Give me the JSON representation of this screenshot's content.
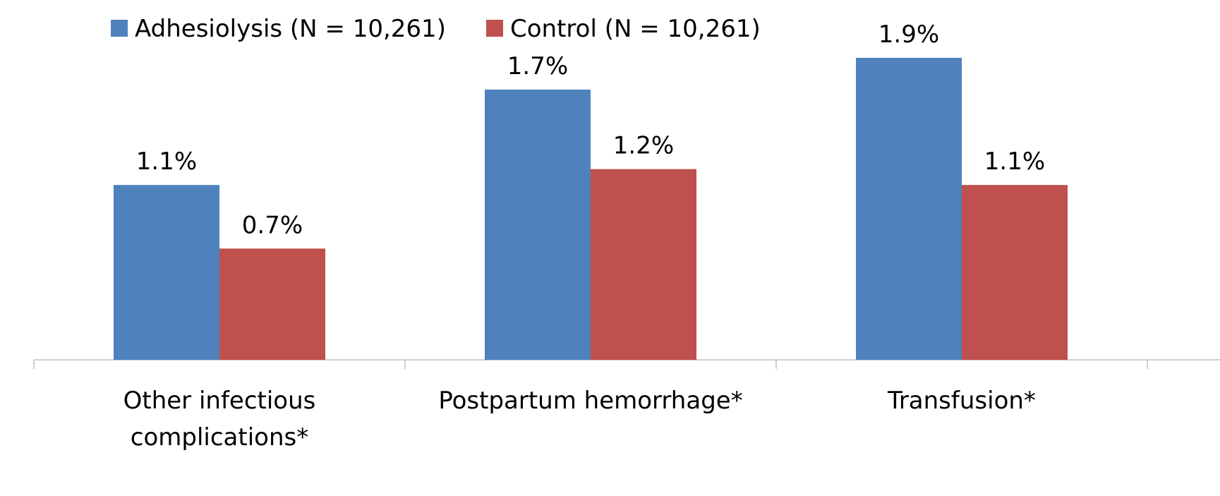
{
  "chart_data": {
    "type": "bar",
    "categories": [
      "Other infectious complications*",
      "Postpartum hemorrhage*",
      "Transfusion*"
    ],
    "series": [
      {
        "name": "Adhesiolysis (N = 10,261)",
        "color": "#4f81bd",
        "values": [
          1.1,
          1.7,
          1.9
        ],
        "value_labels": [
          "1.1%",
          "1.7%",
          "1.9%"
        ]
      },
      {
        "name": "Control (N = 10,261)",
        "color": "#c0504d",
        "values": [
          0.7,
          1.2,
          1.1
        ],
        "value_labels": [
          "0.7%",
          "1.2%",
          "1.1%"
        ]
      }
    ],
    "ylim": [
      0,
      2
    ],
    "grid": false
  }
}
